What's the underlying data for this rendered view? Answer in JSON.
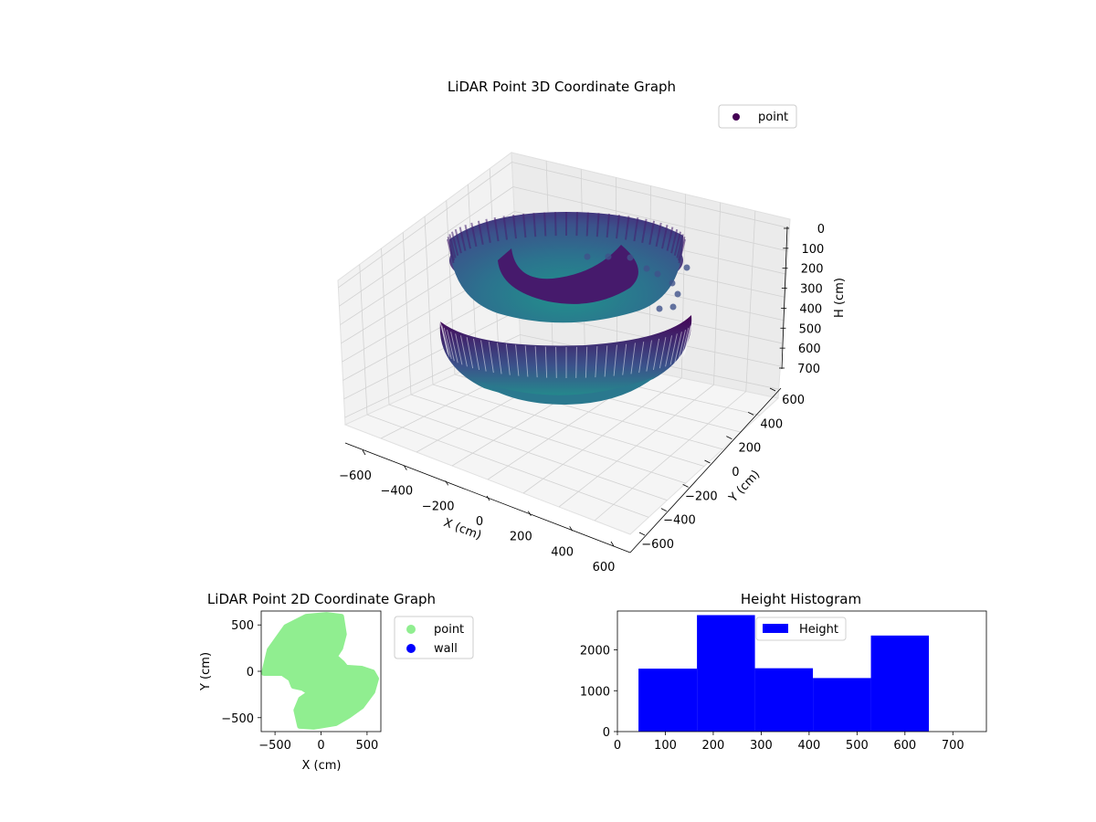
{
  "chart_data": [
    {
      "type": "scatter",
      "projection": "3d",
      "title": "LiDAR Point 3D Coordinate Graph",
      "xlabel": "X (cm)",
      "ylabel": "Y (cm)",
      "zlabel": "H (cm)",
      "xticks": [
        "−600",
        "−400",
        "−200",
        "0",
        "200",
        "400",
        "600"
      ],
      "yticks": [
        "−600",
        "−400",
        "−200",
        "0",
        "200",
        "400",
        "600"
      ],
      "zticks": [
        "0",
        "100",
        "200",
        "300",
        "400",
        "500",
        "600",
        "700"
      ],
      "zlim": [
        0,
        750
      ],
      "zinverted": true,
      "colormap": "viridis",
      "grid": true,
      "legend": {
        "location": "top-right",
        "entries": [
          {
            "name": "point",
            "color": "#440154"
          }
        ]
      }
    },
    {
      "type": "scatter",
      "title": "LiDAR Point 2D Coordinate Graph",
      "xlabel": "X (cm)",
      "ylabel": "Y (cm)",
      "xticks": [
        "−500",
        "0",
        "500"
      ],
      "yticks": [
        "−500",
        "0",
        "500"
      ],
      "xlim": [
        -650,
        650
      ],
      "ylim": [
        -650,
        650
      ],
      "legend": {
        "location": "outside-right",
        "entries": [
          {
            "name": "point",
            "color": "#90ee90"
          },
          {
            "name": "wall",
            "color": "#0000ff"
          }
        ]
      },
      "outline": [
        [
          -620,
          -20
        ],
        [
          -560,
          230
        ],
        [
          -380,
          480
        ],
        [
          -160,
          590
        ],
        [
          60,
          610
        ],
        [
          220,
          590
        ],
        [
          250,
          400
        ],
        [
          210,
          250
        ],
        [
          150,
          160
        ],
        [
          230,
          90
        ],
        [
          270,
          40
        ],
        [
          440,
          30
        ],
        [
          560,
          -10
        ],
        [
          600,
          -80
        ],
        [
          560,
          -220
        ],
        [
          440,
          -380
        ],
        [
          300,
          -480
        ],
        [
          160,
          -560
        ],
        [
          -80,
          -600
        ],
        [
          -230,
          -590
        ],
        [
          -270,
          -420
        ],
        [
          -220,
          -300
        ],
        [
          -120,
          -230
        ],
        [
          -200,
          -180
        ],
        [
          -300,
          -160
        ],
        [
          -330,
          -80
        ],
        [
          -420,
          -20
        ]
      ]
    },
    {
      "type": "bar",
      "histogram": true,
      "title": "Height Histogram",
      "bins": [
        [
          44,
          166
        ],
        [
          166,
          287
        ],
        [
          287,
          408
        ],
        [
          408,
          529
        ],
        [
          529,
          650
        ]
      ],
      "values": [
        1540,
        2850,
        1550,
        1310,
        2350
      ],
      "xlim": [
        0,
        770
      ],
      "ylim": [
        0,
        2950
      ],
      "xticks": [
        "0",
        "100",
        "200",
        "300",
        "400",
        "500",
        "600",
        "700"
      ],
      "yticks": [
        "0",
        "1000",
        "2000"
      ],
      "color": "#0000ff",
      "legend": {
        "location": "upper-center",
        "entries": [
          {
            "name": "Height",
            "color": "#0000ff"
          }
        ]
      }
    }
  ]
}
